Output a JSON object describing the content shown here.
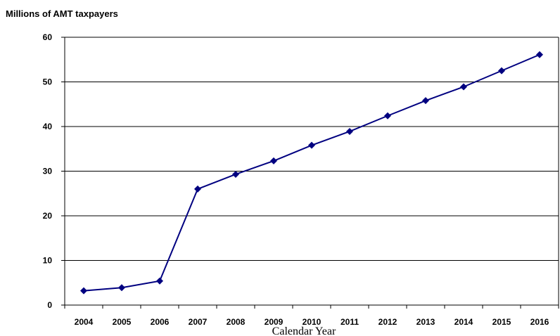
{
  "chart_data": {
    "type": "line",
    "title": "",
    "ylabel": "Millions of AMT taxpayers",
    "xlabel": "Calendar Year",
    "categories": [
      "2004",
      "2005",
      "2006",
      "2007",
      "2008",
      "2009",
      "2010",
      "2011",
      "2012",
      "2013",
      "2014",
      "2015",
      "2016"
    ],
    "series": [
      {
        "values": [
          3.2,
          3.9,
          5.4,
          26.0,
          29.3,
          32.3,
          35.8,
          38.9,
          42.4,
          45.8,
          48.9,
          52.5,
          56.1
        ],
        "color": "#000080"
      }
    ],
    "ylim": [
      0,
      60
    ],
    "yticks": [
      "0",
      "10",
      "20",
      "30",
      "40",
      "50",
      "60"
    ],
    "grid": true,
    "legend": "none"
  }
}
